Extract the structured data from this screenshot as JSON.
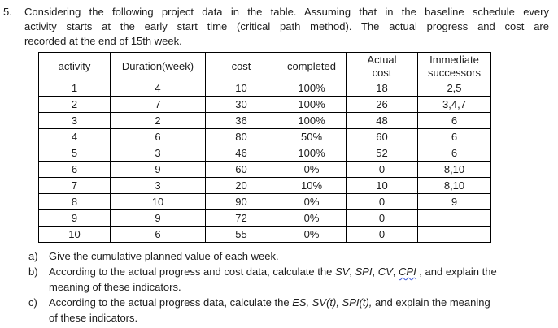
{
  "colors": {
    "background": "#ffffff",
    "text": "#1c1c1c",
    "border": "#000000",
    "squiggle": "#3a55d9"
  },
  "problem": {
    "number": "5.",
    "lines": [
      "Considering the following project data in the table. Assuming that in the baseline schedule every",
      "activity starts at the early start time (critical path method). The actual progress and cost are",
      "recorded at the end of 15th week."
    ]
  },
  "table": {
    "headers": [
      "activity",
      "Duration(week)",
      "cost",
      "completed",
      "Actual\ncost",
      "Immediate\nsuccessors"
    ],
    "rows": [
      [
        "1",
        "4",
        "10",
        "100%",
        "18",
        "2,5"
      ],
      [
        "2",
        "7",
        "30",
        "100%",
        "26",
        "3,4,7"
      ],
      [
        "3",
        "2",
        "36",
        "100%",
        "48",
        "6"
      ],
      [
        "4",
        "6",
        "80",
        "50%",
        "60",
        "6"
      ],
      [
        "5",
        "3",
        "46",
        "100%",
        "52",
        "6"
      ],
      [
        "6",
        "9",
        "60",
        "0%",
        "0",
        "8,10"
      ],
      [
        "7",
        "3",
        "20",
        "10%",
        "10",
        "8,10"
      ],
      [
        "8",
        "10",
        "90",
        "0%",
        "0",
        "9"
      ],
      [
        "9",
        "9",
        "72",
        "0%",
        "0",
        ""
      ],
      [
        "10",
        "6",
        "55",
        "0%",
        "0",
        ""
      ]
    ]
  },
  "questions": {
    "a": {
      "label": "a)",
      "text": "Give the cumulative planned value of each week."
    },
    "b": {
      "label": "b)",
      "lead": "According to the actual progress and cost data, calculate the ",
      "t1": "SV",
      "c1": ", ",
      "t2": "SPI",
      "c2": ", ",
      "t3": "CV",
      "c3": ", ",
      "t4": "CPI",
      "tail": " , and explain the",
      "line2": "meaning of these indicators."
    },
    "c": {
      "label": "c)",
      "lead": "According to the actual progress data, calculate the ",
      "terms": "ES, SV(t), SPI(t),",
      "tail": " and explain the meaning",
      "line2": "of these indicators."
    }
  }
}
